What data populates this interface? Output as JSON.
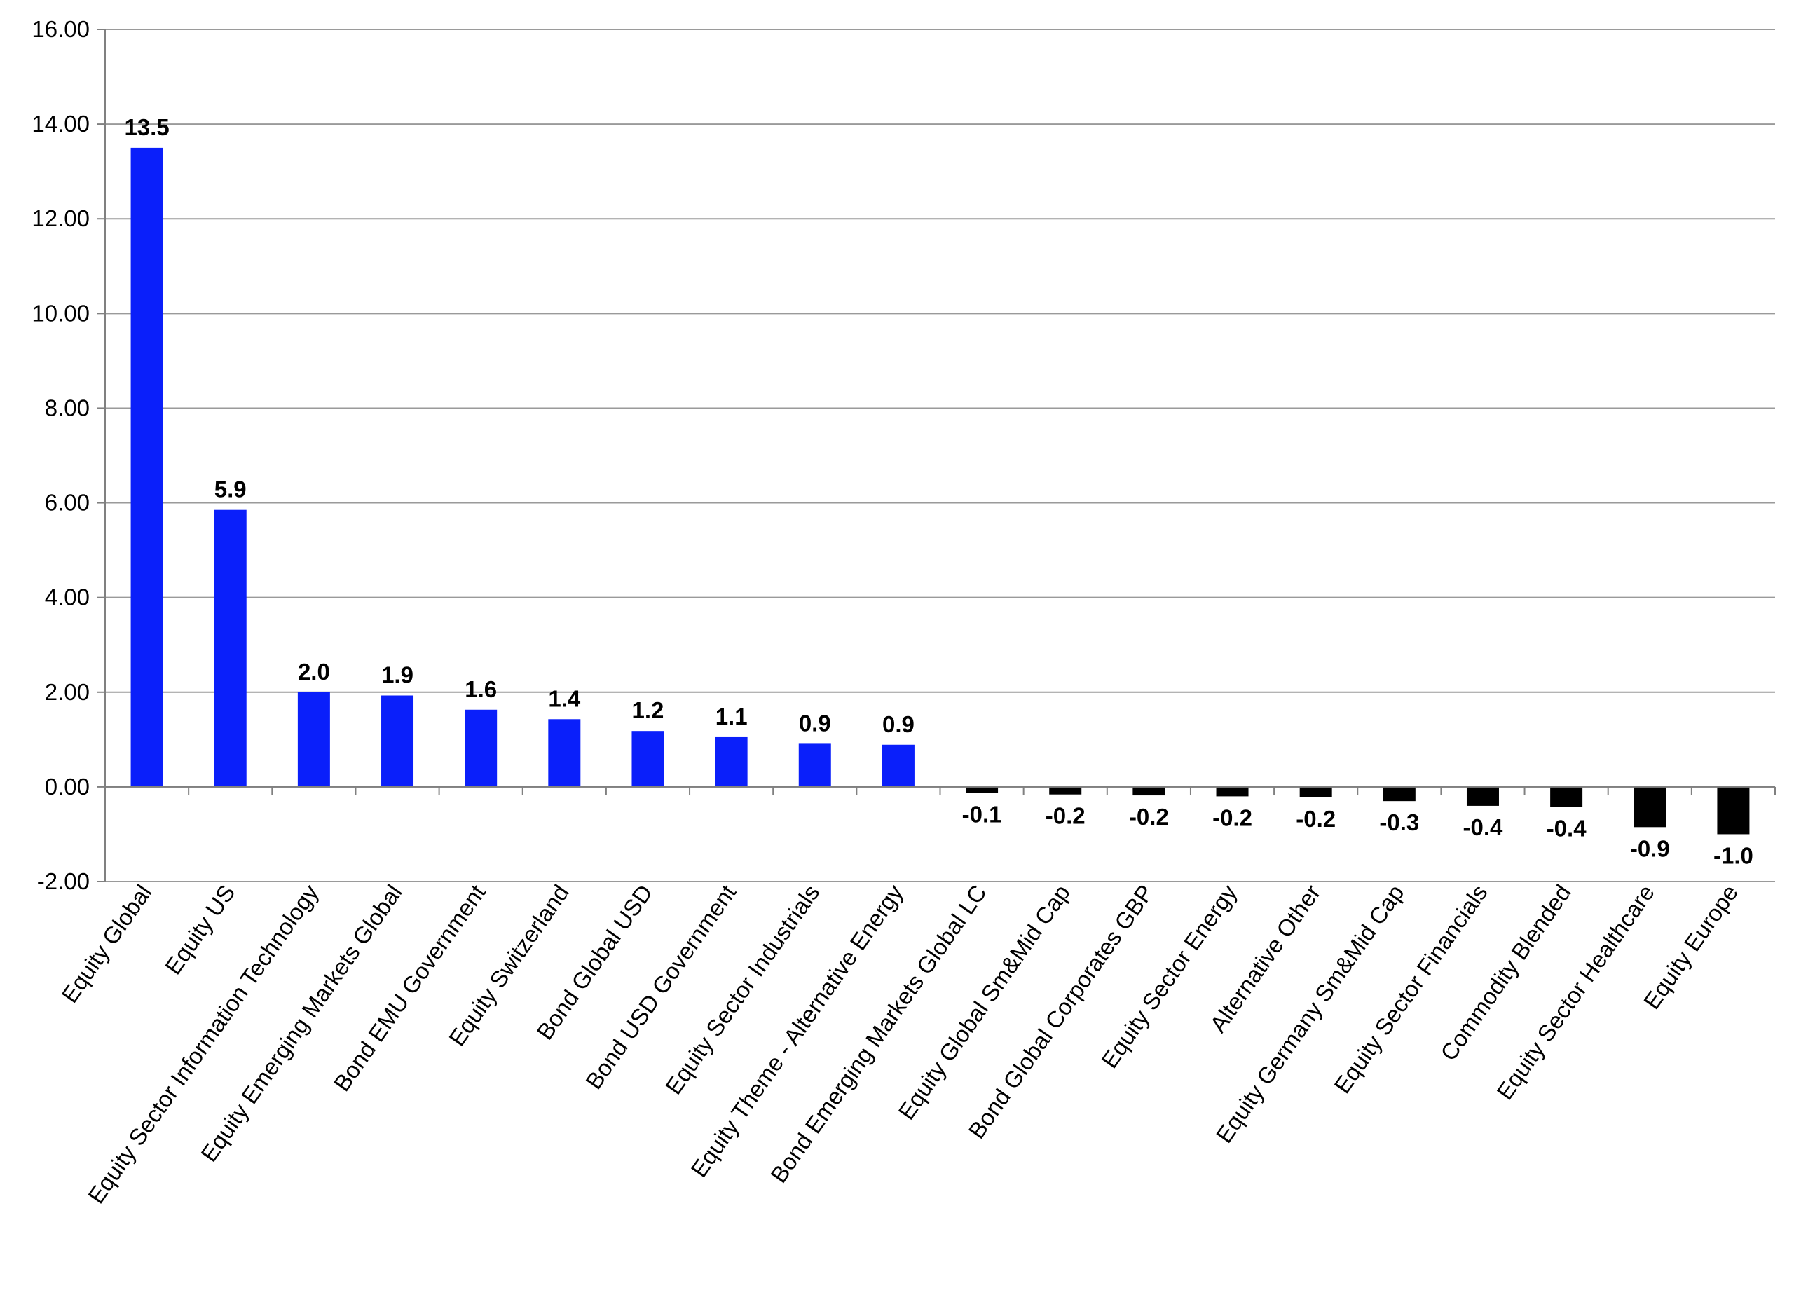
{
  "chart_data": {
    "type": "bar",
    "title": "",
    "xlabel": "",
    "ylabel": "",
    "ylim": [
      -2,
      16
    ],
    "yticks": [
      -2,
      0,
      2,
      4,
      6,
      8,
      10,
      12,
      14,
      16
    ],
    "ytick_labels": [
      "-2.00",
      "0.00",
      "2.00",
      "4.00",
      "6.00",
      "8.00",
      "10.00",
      "12.00",
      "14.00",
      "16.00"
    ],
    "grid": true,
    "legend": "none",
    "colors": {
      "positive": "#0a1ffa",
      "negative": "#000000",
      "grid": "#9a9a9a",
      "axis": "#808080"
    },
    "categories": [
      "Equity Global",
      "Equity US",
      "Equity Sector Information Technology",
      "Equity Emerging Markets Global",
      "Bond EMU Government",
      "Equity Switzerland",
      "Bond Global USD",
      "Bond USD Government",
      "Equity Sector Industrials",
      "Equity Theme - Alternative Energy",
      "Bond Emerging Markets Global LC",
      "Equity Global Sm&Mid Cap",
      "Bond Global Corporates GBP",
      "Equity Sector Energy",
      "Alternative Other",
      "Equity Germany Sm&Mid Cap",
      "Equity Sector Financials",
      "Commodity Blended",
      "Equity Sector Healthcare",
      "Equity Europe"
    ],
    "values": [
      13.5,
      5.85,
      2.0,
      1.93,
      1.63,
      1.43,
      1.18,
      1.05,
      0.91,
      0.89,
      -0.13,
      -0.16,
      -0.18,
      -0.2,
      -0.22,
      -0.3,
      -0.4,
      -0.42,
      -0.85,
      -1.0
    ],
    "data_labels": [
      "13.5",
      "5.9",
      "2.0",
      "1.9",
      "1.6",
      "1.4",
      "1.2",
      "1.1",
      "0.9",
      "0.9",
      "-0.1",
      "-0.2",
      "-0.2",
      "-0.2",
      "-0.2",
      "-0.3",
      "-0.4",
      "-0.4",
      "-0.9",
      "-1.0"
    ]
  }
}
